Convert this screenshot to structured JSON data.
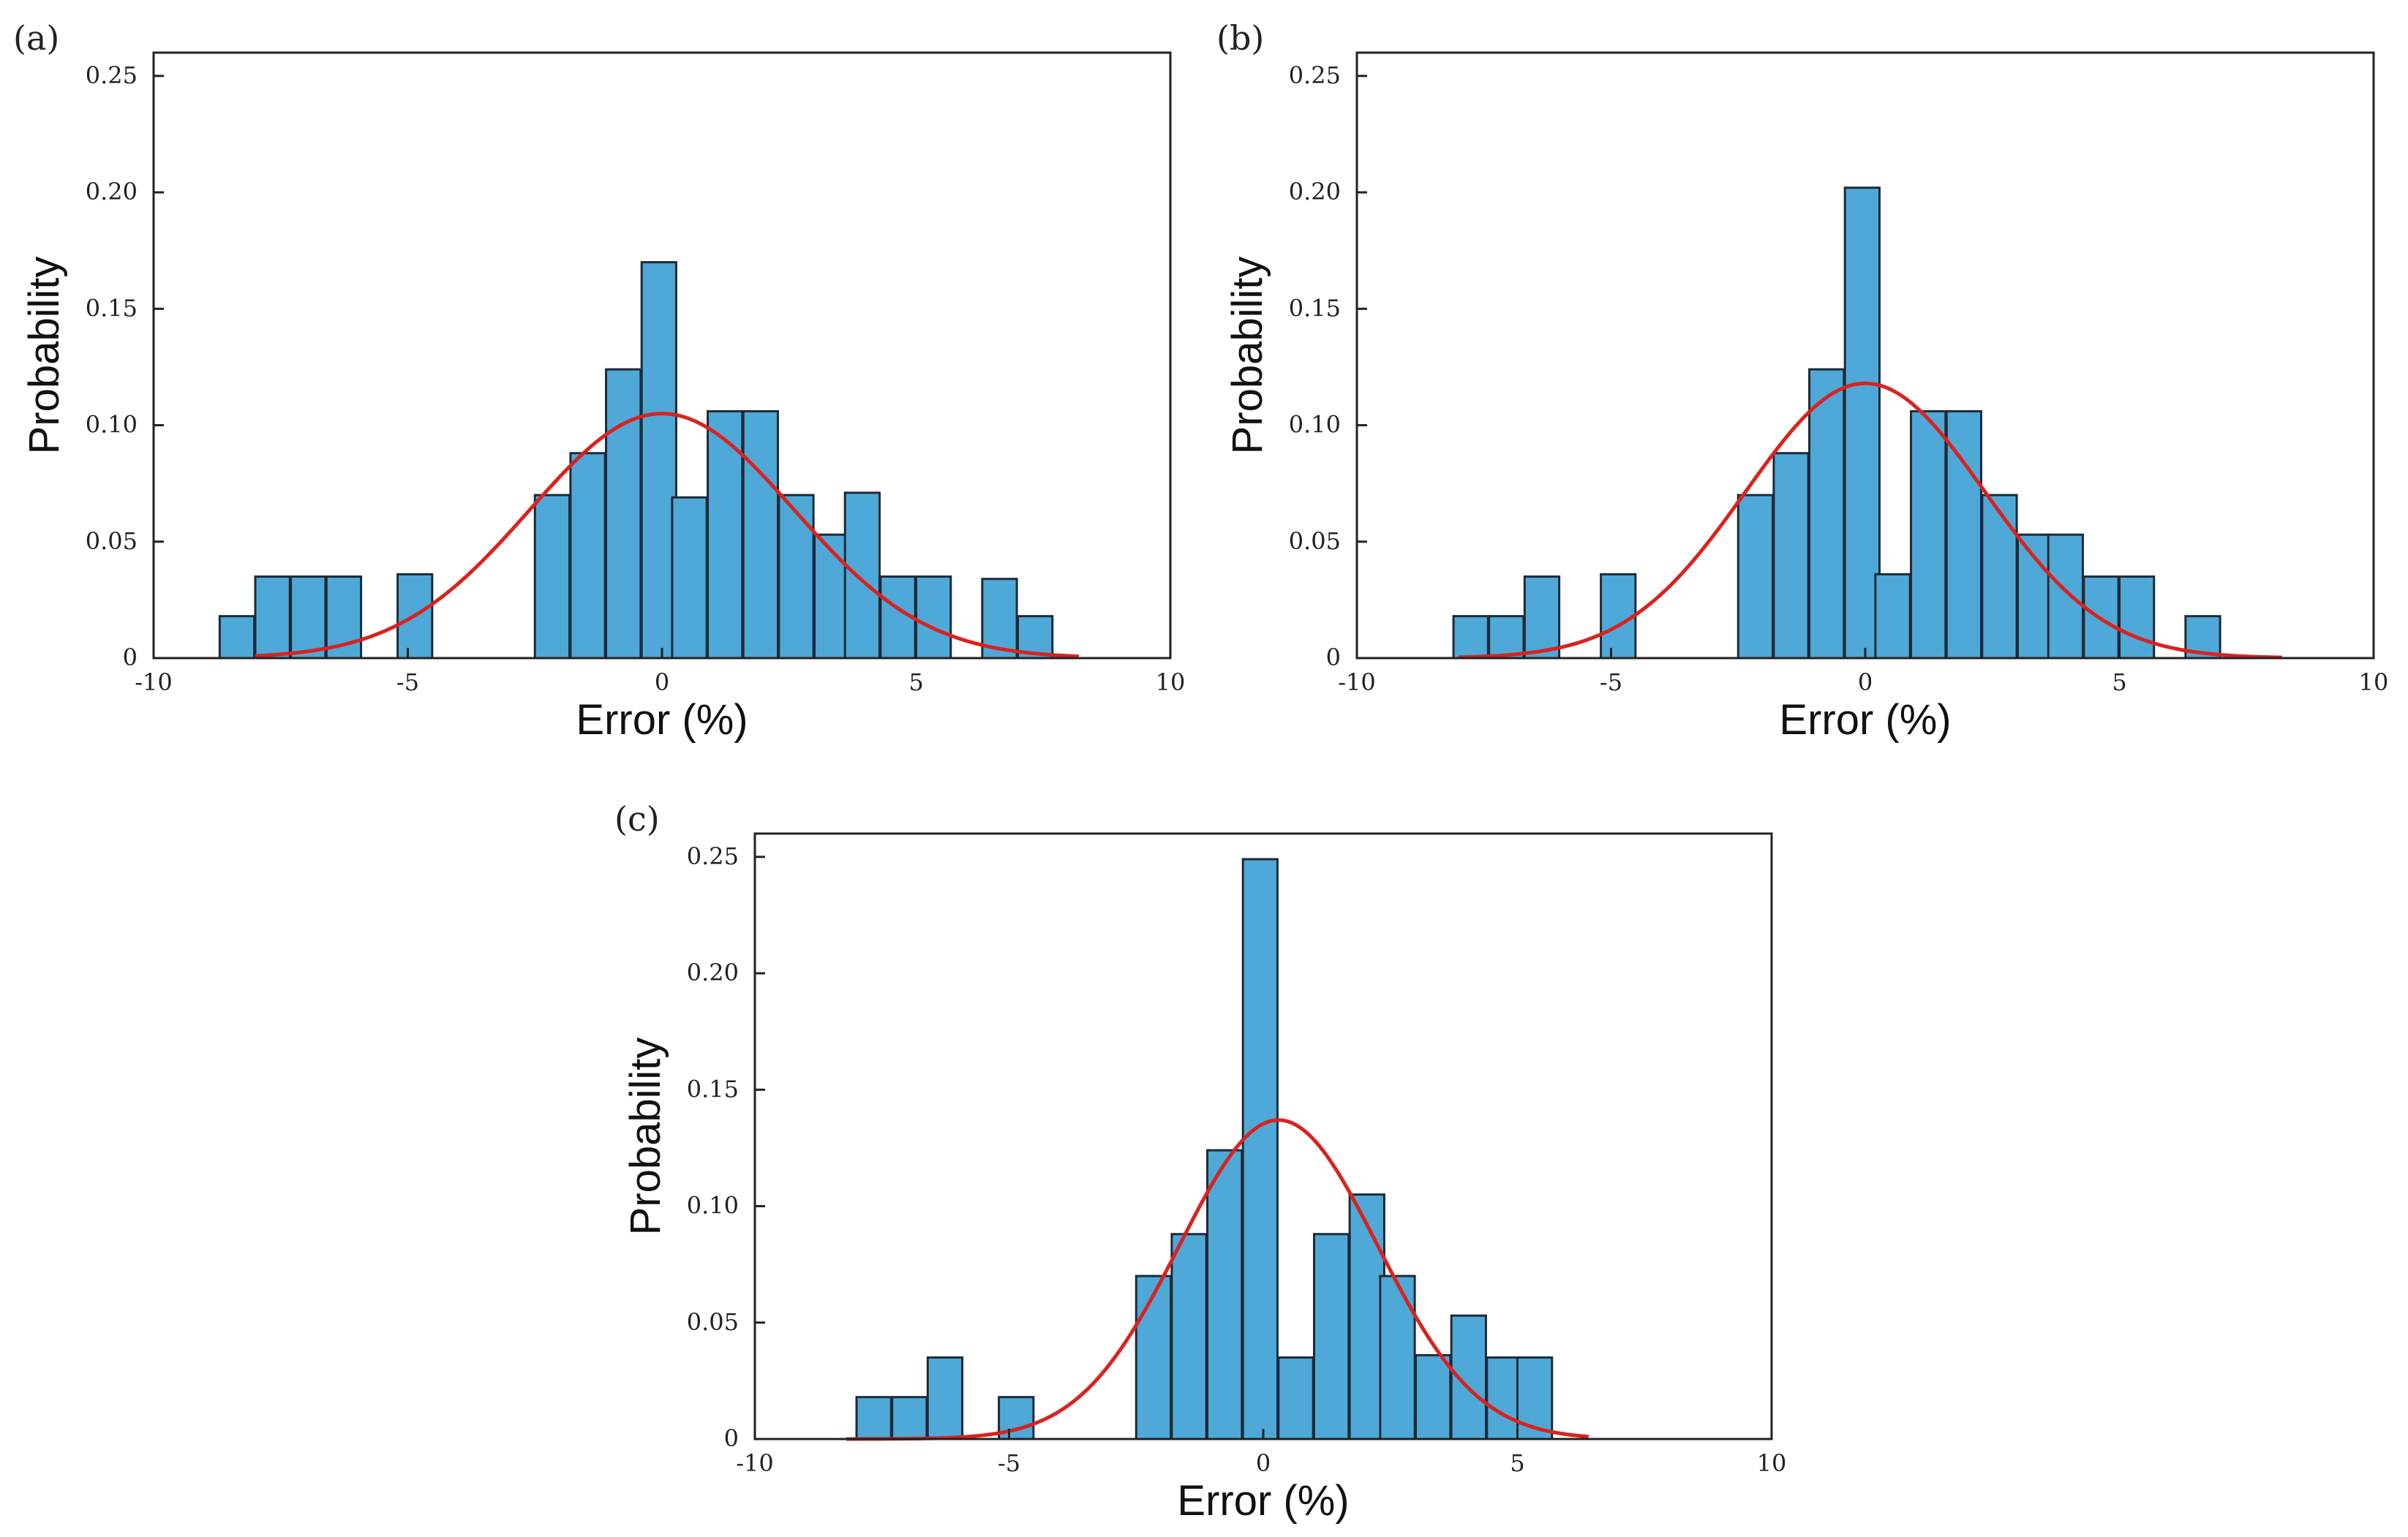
{
  "colors": {
    "bar": "#4ea9d8",
    "bar_edge": "#1e2a36",
    "fit_line": "#d9231f",
    "axes": "#222222"
  },
  "chart_data": [
    {
      "panel_label": "(a)",
      "type": "bar",
      "title": "",
      "xlabel": "Error (%)",
      "ylabel": "Probability",
      "xlim": [
        -10,
        10
      ],
      "ylim": [
        0,
        0.26
      ],
      "xticks": [
        -10,
        -5,
        0,
        5,
        10
      ],
      "xtick_labels": [
        "-10",
        "-5",
        "0",
        "5",
        "10"
      ],
      "yticks": [
        0,
        0.05,
        0.1,
        0.15,
        0.2,
        0.25
      ],
      "ytick_labels": [
        "0",
        "0.05",
        "0.10",
        "0.15",
        "0.20",
        "0.25"
      ],
      "bin_width": 0.68,
      "bins_left": [
        -8.7,
        -8.0,
        -7.3,
        -6.6,
        -5.2,
        -2.5,
        -1.8,
        -1.1,
        -0.4,
        0.2,
        0.9,
        1.6,
        2.3,
        3.0,
        3.6,
        4.3,
        5.0,
        6.3,
        7.0
      ],
      "values": [
        0.018,
        0.035,
        0.035,
        0.035,
        0.036,
        0.07,
        0.088,
        0.124,
        0.17,
        0.069,
        0.106,
        0.106,
        0.07,
        0.053,
        0.071,
        0.035,
        0.035,
        0.034,
        0.018
      ],
      "fit": {
        "type": "normal",
        "mean": 0.0,
        "peak": 0.105,
        "sigma": 2.6,
        "range": [
          -8.0,
          8.2
        ]
      }
    },
    {
      "panel_label": "(b)",
      "type": "bar",
      "title": "",
      "xlabel": "Error (%)",
      "ylabel": "Probability",
      "xlim": [
        -10,
        10
      ],
      "ylim": [
        0,
        0.26
      ],
      "xticks": [
        -10,
        -5,
        0,
        5,
        10
      ],
      "xtick_labels": [
        "-10",
        "-5",
        "0",
        "5",
        "10"
      ],
      "yticks": [
        0,
        0.05,
        0.1,
        0.15,
        0.2,
        0.25
      ],
      "ytick_labels": [
        "0",
        "0.05",
        "0.10",
        "0.15",
        "0.20",
        "0.25"
      ],
      "bin_width": 0.68,
      "bins_left": [
        -8.1,
        -7.4,
        -6.7,
        -5.2,
        -2.5,
        -1.8,
        -1.1,
        -0.4,
        0.2,
        0.9,
        1.6,
        2.3,
        3.0,
        3.6,
        4.3,
        5.0,
        6.3
      ],
      "values": [
        0.018,
        0.018,
        0.035,
        0.036,
        0.07,
        0.088,
        0.124,
        0.202,
        0.036,
        0.106,
        0.106,
        0.07,
        0.053,
        0.053,
        0.035,
        0.035,
        0.018
      ],
      "fit": {
        "type": "normal",
        "mean": 0.0,
        "peak": 0.118,
        "sigma": 2.35,
        "range": [
          -8.0,
          8.2
        ]
      }
    },
    {
      "panel_label": "(c)",
      "type": "bar",
      "title": "",
      "xlabel": "Error (%)",
      "ylabel": "Probability",
      "xlim": [
        -10,
        10
      ],
      "ylim": [
        0,
        0.26
      ],
      "xticks": [
        -10,
        -5,
        0,
        5,
        10
      ],
      "xtick_labels": [
        "-10",
        "-5",
        "0",
        "5",
        "10"
      ],
      "yticks": [
        0,
        0.05,
        0.1,
        0.15,
        0.2,
        0.25
      ],
      "ytick_labels": [
        "0",
        "0.05",
        "0.10",
        "0.15",
        "0.20",
        "0.25"
      ],
      "bin_width": 0.68,
      "bins_left": [
        -8.0,
        -7.3,
        -6.6,
        -5.2,
        -2.5,
        -1.8,
        -1.1,
        -0.4,
        0.3,
        1.0,
        1.7,
        2.3,
        3.0,
        3.7,
        4.4,
        5.0
      ],
      "values": [
        0.018,
        0.018,
        0.035,
        0.018,
        0.07,
        0.088,
        0.124,
        0.249,
        0.035,
        0.088,
        0.105,
        0.07,
        0.036,
        0.053,
        0.035,
        0.035
      ],
      "fit": {
        "type": "normal",
        "mean": 0.3,
        "peak": 0.137,
        "sigma": 1.95,
        "range": [
          -8.2,
          6.4
        ]
      }
    }
  ]
}
